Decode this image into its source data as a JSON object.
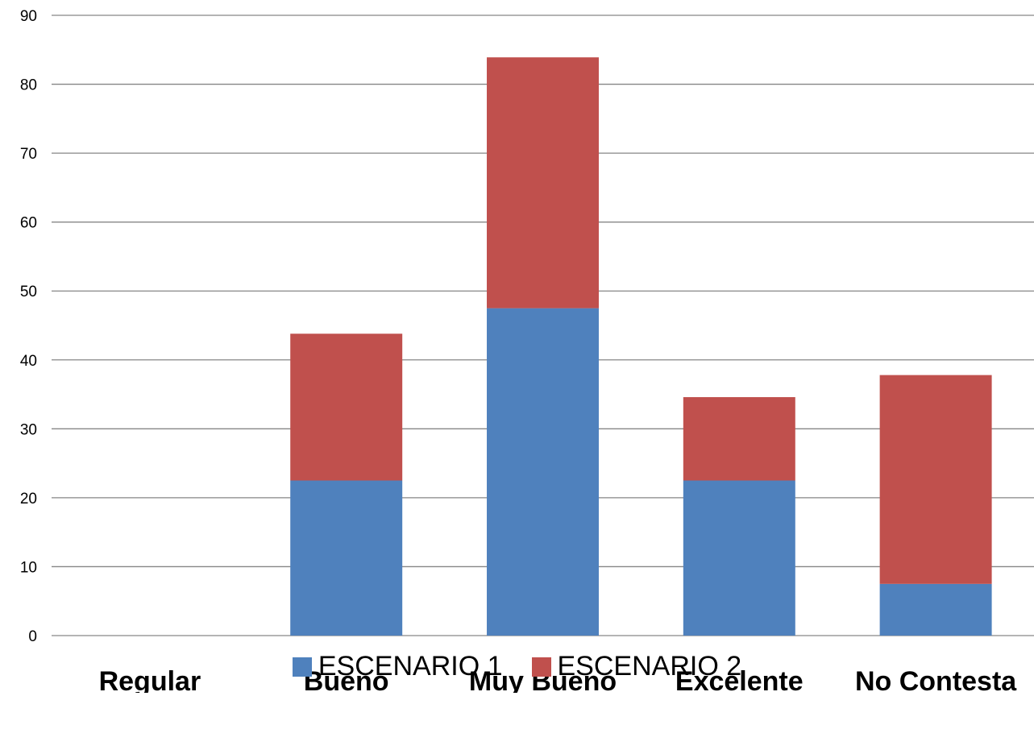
{
  "chart_data": {
    "type": "bar",
    "stacked": true,
    "categories": [
      "Regular",
      "Bueno",
      "Muy Bueno",
      "Excelente",
      "No Contesta"
    ],
    "series": [
      {
        "name": "ESCENARIO 1",
        "color": "#4F81BD",
        "values": [
          0,
          22.5,
          47.5,
          22.5,
          7.5
        ]
      },
      {
        "name": "ESCENARIO 2",
        "color": "#C0504D",
        "values": [
          0,
          21.3,
          36.4,
          12.1,
          30.3
        ]
      }
    ],
    "ylim": [
      0,
      90
    ],
    "yticks": [
      0,
      10,
      20,
      30,
      40,
      50,
      60,
      70,
      80,
      90
    ],
    "grid": true,
    "legend_position": "bottom"
  }
}
